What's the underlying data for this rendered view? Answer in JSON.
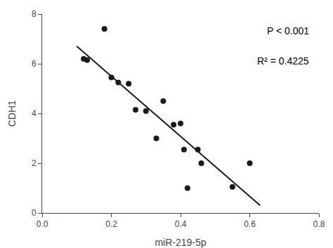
{
  "chart_data": {
    "type": "scatter",
    "xlabel": "miR-219-5p",
    "ylabel": "CDH1",
    "series": [
      {
        "type": "scatter",
        "marker": "circle",
        "color": "#1a1a1a",
        "x": [
          0.12,
          0.13,
          0.18,
          0.2,
          0.22,
          0.25,
          0.27,
          0.3,
          0.33,
          0.35,
          0.38,
          0.4,
          0.41,
          0.42,
          0.45,
          0.46,
          0.55,
          0.6
        ],
        "values": [
          6.2,
          6.15,
          7.4,
          5.45,
          5.25,
          5.2,
          4.15,
          4.1,
          3.0,
          4.5,
          3.55,
          3.6,
          2.55,
          1.0,
          2.55,
          2.0,
          1.05,
          2.0
        ]
      },
      {
        "type": "line",
        "line_style": "solid",
        "color": "#1a1a1a",
        "x": [
          0.1,
          0.63
        ],
        "values": [
          6.7022,
          0.3046
        ]
      }
    ],
    "annotations": [
      "P < 0.001",
      "R² = 0.4225"
    ],
    "xlim": [
      0.0,
      0.8
    ],
    "ylim": [
      0,
      8
    ],
    "xticks": [
      {
        "value": 0.0,
        "label": "0.0"
      },
      0.2,
      0.4,
      0.6,
      0.8
    ],
    "yticks": [
      0,
      2,
      4,
      6,
      8
    ],
    "grid": false
  }
}
